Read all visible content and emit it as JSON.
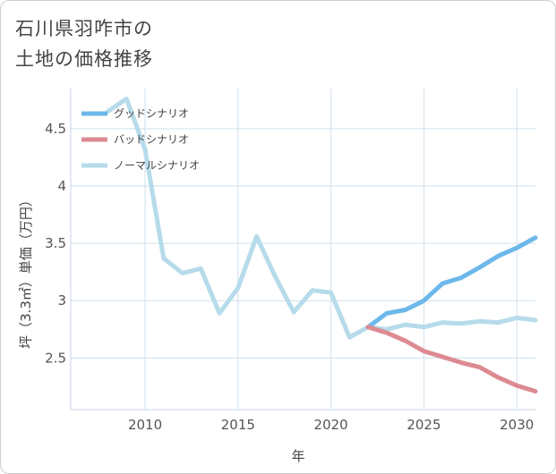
{
  "title": {
    "line1": "石川県羽咋市の",
    "line2": "土地の価格推移"
  },
  "chart_data": {
    "type": "line",
    "xlabel": "年",
    "ylabel": "坪（3.3㎡）単価（万円）",
    "xlim": [
      2006,
      2031
    ],
    "ylim": [
      2.05,
      4.85
    ],
    "xticks": [
      2010,
      2015,
      2020,
      2025,
      2030
    ],
    "yticks": [
      {
        "value": 2.5,
        "label": "2.5"
      },
      {
        "value": 3,
        "label": "3"
      },
      {
        "value": 3.5,
        "label": "3.5"
      },
      {
        "value": 4,
        "label": "4"
      },
      {
        "value": 4.5,
        "label": "4.5"
      }
    ],
    "grid": true,
    "legend_position": "top-left",
    "series": [
      {
        "name": "グッドシナリオ",
        "color": "#6cb8ea",
        "x": [
          2022,
          2023,
          2024,
          2025,
          2026,
          2027,
          2028,
          2029,
          2030,
          2031
        ],
        "y": [
          2.77,
          2.89,
          2.92,
          3.0,
          3.15,
          3.2,
          3.29,
          3.39,
          3.46,
          3.55
        ]
      },
      {
        "name": "バッドシナリオ",
        "color": "#dd8a92",
        "x": [
          2022,
          2023,
          2024,
          2025,
          2026,
          2027,
          2028,
          2029,
          2030,
          2031
        ],
        "y": [
          2.77,
          2.72,
          2.65,
          2.56,
          2.51,
          2.46,
          2.42,
          2.33,
          2.26,
          2.21
        ]
      },
      {
        "name": "ノーマルシナリオ",
        "color": "#b6dbea",
        "x": [
          2008,
          2009,
          2010,
          2011,
          2012,
          2013,
          2014,
          2015,
          2016,
          2017,
          2018,
          2019,
          2020,
          2021,
          2022,
          2023,
          2024,
          2025,
          2026,
          2027,
          2028,
          2029,
          2030,
          2031
        ],
        "y": [
          4.65,
          4.76,
          4.32,
          3.37,
          3.24,
          3.28,
          2.89,
          3.11,
          3.56,
          3.21,
          2.9,
          3.09,
          3.07,
          2.68,
          2.77,
          2.75,
          2.79,
          2.77,
          2.81,
          2.8,
          2.82,
          2.81,
          2.85,
          2.83
        ]
      }
    ]
  }
}
